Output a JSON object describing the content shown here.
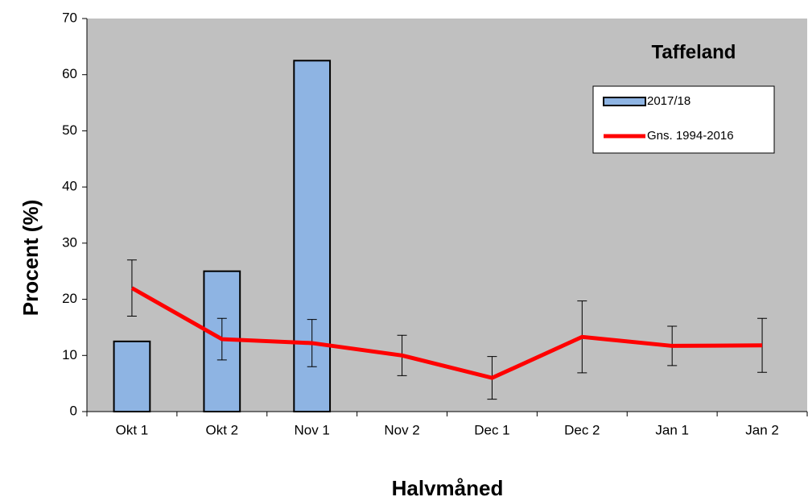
{
  "chart_data": {
    "type": "bar",
    "title": "Taffeland",
    "xlabel": "Halvmåned",
    "ylabel": "Procent (%)",
    "categories": [
      "Okt 1",
      "Okt 2",
      "Nov 1",
      "Nov 2",
      "Dec 1",
      "Dec 2",
      "Jan 1",
      "Jan 2"
    ],
    "series": [
      {
        "name": "2017/18",
        "type": "bar",
        "color": "#8eb4e3",
        "values": [
          12.5,
          25,
          62.5,
          null,
          null,
          null,
          null,
          null
        ]
      },
      {
        "name": "Gns. 1994-2016",
        "type": "line",
        "color": "#ff0000",
        "values": [
          22,
          12.9,
          12.2,
          10,
          6,
          13.3,
          11.7,
          11.8
        ],
        "errors": [
          5,
          3.7,
          4.2,
          3.6,
          3.8,
          6.4,
          3.5,
          4.8
        ]
      }
    ],
    "ylim": [
      0,
      70
    ],
    "yticks": [
      0,
      10,
      20,
      30,
      40,
      50,
      60,
      70
    ],
    "background": "#c0c0c0"
  }
}
